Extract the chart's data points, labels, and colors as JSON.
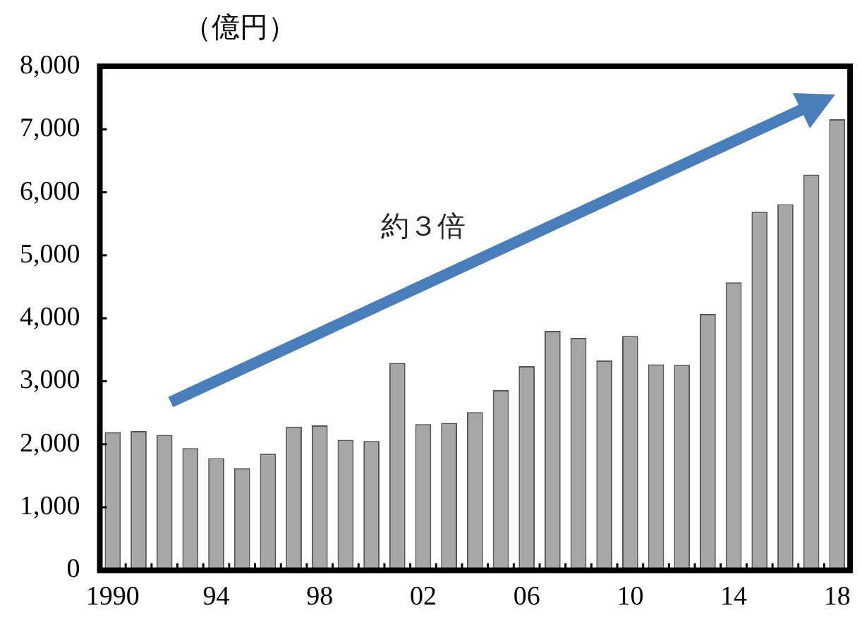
{
  "chart_data": {
    "type": "bar",
    "ylabel": "（億円）",
    "annotations": [
      "約３倍"
    ],
    "categories": [
      "1990",
      null,
      null,
      null,
      "94",
      null,
      null,
      null,
      "98",
      null,
      null,
      null,
      "02",
      null,
      null,
      null,
      "06",
      null,
      null,
      null,
      "10",
      null,
      null,
      null,
      "14",
      null,
      null,
      null,
      "18"
    ],
    "values": [
      2190,
      2210,
      2150,
      1940,
      1780,
      1620,
      1850,
      2280,
      2300,
      2070,
      2050,
      3290,
      2320,
      2340,
      2510,
      2860,
      3240,
      3800,
      3690,
      3330,
      3720,
      3270,
      3260,
      4070,
      4570,
      5690,
      5810,
      6280,
      7160
    ],
    "color": "#a6a6a6",
    "ylim": [
      0,
      8000
    ],
    "yticks": [
      0,
      {
        "value": 1000,
        "label": "1,000"
      },
      {
        "value": 2000,
        "label": "2,000"
      },
      {
        "value": 3000,
        "label": "3,000"
      },
      {
        "value": 4000,
        "label": "4,000"
      },
      {
        "value": 5000,
        "label": "5,000"
      },
      {
        "value": 6000,
        "label": "6,000"
      },
      {
        "value": 7000,
        "label": "7,000"
      },
      {
        "value": 8000,
        "label": "8,000"
      }
    ],
    "grid": false,
    "legend": false
  }
}
